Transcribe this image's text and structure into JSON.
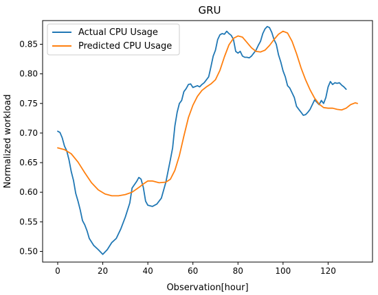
{
  "chart_data": {
    "type": "line",
    "title": "GRU",
    "xlabel": "Observation[hour]",
    "ylabel": "Normalized workload",
    "xlim": [
      -6.7,
      139.7
    ],
    "ylim": [
      0.482,
      0.89
    ],
    "xticks": [
      0,
      20,
      40,
      60,
      80,
      100,
      120
    ],
    "yticks": [
      0.5,
      0.55,
      0.6,
      0.65,
      0.7,
      0.75,
      0.8,
      0.85
    ],
    "yticklabels": [
      "0.50",
      "0.55",
      "0.60",
      "0.65",
      "0.70",
      "0.75",
      "0.80",
      "0.85"
    ],
    "grid": false,
    "legend_position": "top-left",
    "series": [
      {
        "name": "Actual CPU Usage",
        "color": "#1f77b4",
        "points": [
          [
            0,
            0.703
          ],
          [
            1,
            0.701
          ],
          [
            2,
            0.692
          ],
          [
            3,
            0.678
          ],
          [
            4,
            0.67
          ],
          [
            5,
            0.655
          ],
          [
            6,
            0.635
          ],
          [
            7,
            0.62
          ],
          [
            8,
            0.598
          ],
          [
            9,
            0.585
          ],
          [
            10,
            0.57
          ],
          [
            11,
            0.552
          ],
          [
            12,
            0.545
          ],
          [
            13,
            0.535
          ],
          [
            14,
            0.522
          ],
          [
            16,
            0.51
          ],
          [
            18,
            0.503
          ],
          [
            20,
            0.495
          ],
          [
            22,
            0.503
          ],
          [
            24,
            0.515
          ],
          [
            26,
            0.522
          ],
          [
            28,
            0.538
          ],
          [
            30,
            0.558
          ],
          [
            32,
            0.582
          ],
          [
            33,
            0.607
          ],
          [
            35,
            0.618
          ],
          [
            36,
            0.625
          ],
          [
            37,
            0.622
          ],
          [
            38,
            0.608
          ],
          [
            39,
            0.585
          ],
          [
            40,
            0.578
          ],
          [
            42,
            0.576
          ],
          [
            44,
            0.58
          ],
          [
            46,
            0.59
          ],
          [
            48,
            0.617
          ],
          [
            50,
            0.655
          ],
          [
            51,
            0.675
          ],
          [
            52,
            0.712
          ],
          [
            53,
            0.735
          ],
          [
            54,
            0.75
          ],
          [
            55,
            0.755
          ],
          [
            56,
            0.77
          ],
          [
            57,
            0.775
          ],
          [
            58,
            0.782
          ],
          [
            59,
            0.783
          ],
          [
            60,
            0.777
          ],
          [
            62,
            0.78
          ],
          [
            63,
            0.778
          ],
          [
            64,
            0.782
          ],
          [
            65,
            0.785
          ],
          [
            66,
            0.79
          ],
          [
            67,
            0.795
          ],
          [
            68,
            0.812
          ],
          [
            69,
            0.83
          ],
          [
            70,
            0.84
          ],
          [
            71,
            0.858
          ],
          [
            72,
            0.866
          ],
          [
            73,
            0.868
          ],
          [
            74,
            0.867
          ],
          [
            75,
            0.872
          ],
          [
            76,
            0.868
          ],
          [
            77,
            0.865
          ],
          [
            78,
            0.858
          ],
          [
            79,
            0.838
          ],
          [
            80,
            0.835
          ],
          [
            81,
            0.838
          ],
          [
            82,
            0.83
          ],
          [
            83,
            0.828
          ],
          [
            84,
            0.828
          ],
          [
            85,
            0.827
          ],
          [
            86,
            0.83
          ],
          [
            87,
            0.835
          ],
          [
            88,
            0.84
          ],
          [
            89,
            0.848
          ],
          [
            90,
            0.855
          ],
          [
            91,
            0.868
          ],
          [
            92,
            0.876
          ],
          [
            93,
            0.88
          ],
          [
            94,
            0.878
          ],
          [
            95,
            0.87
          ],
          [
            96,
            0.858
          ],
          [
            97,
            0.85
          ],
          [
            98,
            0.832
          ],
          [
            99,
            0.82
          ],
          [
            100,
            0.805
          ],
          [
            101,
            0.795
          ],
          [
            102,
            0.78
          ],
          [
            103,
            0.776
          ],
          [
            104,
            0.768
          ],
          [
            105,
            0.76
          ],
          [
            106,
            0.745
          ],
          [
            107,
            0.74
          ],
          [
            108,
            0.735
          ],
          [
            109,
            0.73
          ],
          [
            110,
            0.731
          ],
          [
            111,
            0.735
          ],
          [
            112,
            0.74
          ],
          [
            113,
            0.748
          ],
          [
            114,
            0.756
          ],
          [
            115,
            0.752
          ],
          [
            116,
            0.748
          ],
          [
            117,
            0.755
          ],
          [
            118,
            0.75
          ],
          [
            119,
            0.76
          ],
          [
            120,
            0.778
          ],
          [
            121,
            0.787
          ],
          [
            122,
            0.782
          ],
          [
            123,
            0.785
          ],
          [
            124,
            0.784
          ],
          [
            125,
            0.785
          ],
          [
            126,
            0.781
          ],
          [
            127,
            0.778
          ],
          [
            128,
            0.774
          ]
        ]
      },
      {
        "name": "Predicted CPU Usage",
        "color": "#ff7f0e",
        "points": [
          [
            0,
            0.675
          ],
          [
            3,
            0.672
          ],
          [
            6,
            0.665
          ],
          [
            9,
            0.651
          ],
          [
            12,
            0.633
          ],
          [
            15,
            0.616
          ],
          [
            18,
            0.604
          ],
          [
            21,
            0.597
          ],
          [
            24,
            0.594
          ],
          [
            27,
            0.594
          ],
          [
            30,
            0.596
          ],
          [
            33,
            0.6
          ],
          [
            36,
            0.608
          ],
          [
            38,
            0.614
          ],
          [
            40,
            0.619
          ],
          [
            42,
            0.619
          ],
          [
            45,
            0.616
          ],
          [
            48,
            0.617
          ],
          [
            50,
            0.622
          ],
          [
            52,
            0.637
          ],
          [
            54,
            0.662
          ],
          [
            56,
            0.695
          ],
          [
            58,
            0.726
          ],
          [
            60,
            0.747
          ],
          [
            62,
            0.762
          ],
          [
            64,
            0.772
          ],
          [
            66,
            0.778
          ],
          [
            68,
            0.783
          ],
          [
            70,
            0.79
          ],
          [
            72,
            0.806
          ],
          [
            74,
            0.829
          ],
          [
            76,
            0.849
          ],
          [
            78,
            0.86
          ],
          [
            80,
            0.864
          ],
          [
            82,
            0.862
          ],
          [
            84,
            0.853
          ],
          [
            86,
            0.844
          ],
          [
            88,
            0.838
          ],
          [
            90,
            0.837
          ],
          [
            92,
            0.84
          ],
          [
            94,
            0.848
          ],
          [
            96,
            0.858
          ],
          [
            98,
            0.867
          ],
          [
            100,
            0.872
          ],
          [
            102,
            0.869
          ],
          [
            104,
            0.855
          ],
          [
            106,
            0.834
          ],
          [
            108,
            0.81
          ],
          [
            110,
            0.79
          ],
          [
            112,
            0.773
          ],
          [
            114,
            0.759
          ],
          [
            116,
            0.749
          ],
          [
            118,
            0.743
          ],
          [
            120,
            0.742
          ],
          [
            122,
            0.742
          ],
          [
            124,
            0.74
          ],
          [
            126,
            0.739
          ],
          [
            128,
            0.742
          ],
          [
            130,
            0.748
          ],
          [
            132,
            0.751
          ],
          [
            133,
            0.75
          ]
        ]
      }
    ]
  }
}
